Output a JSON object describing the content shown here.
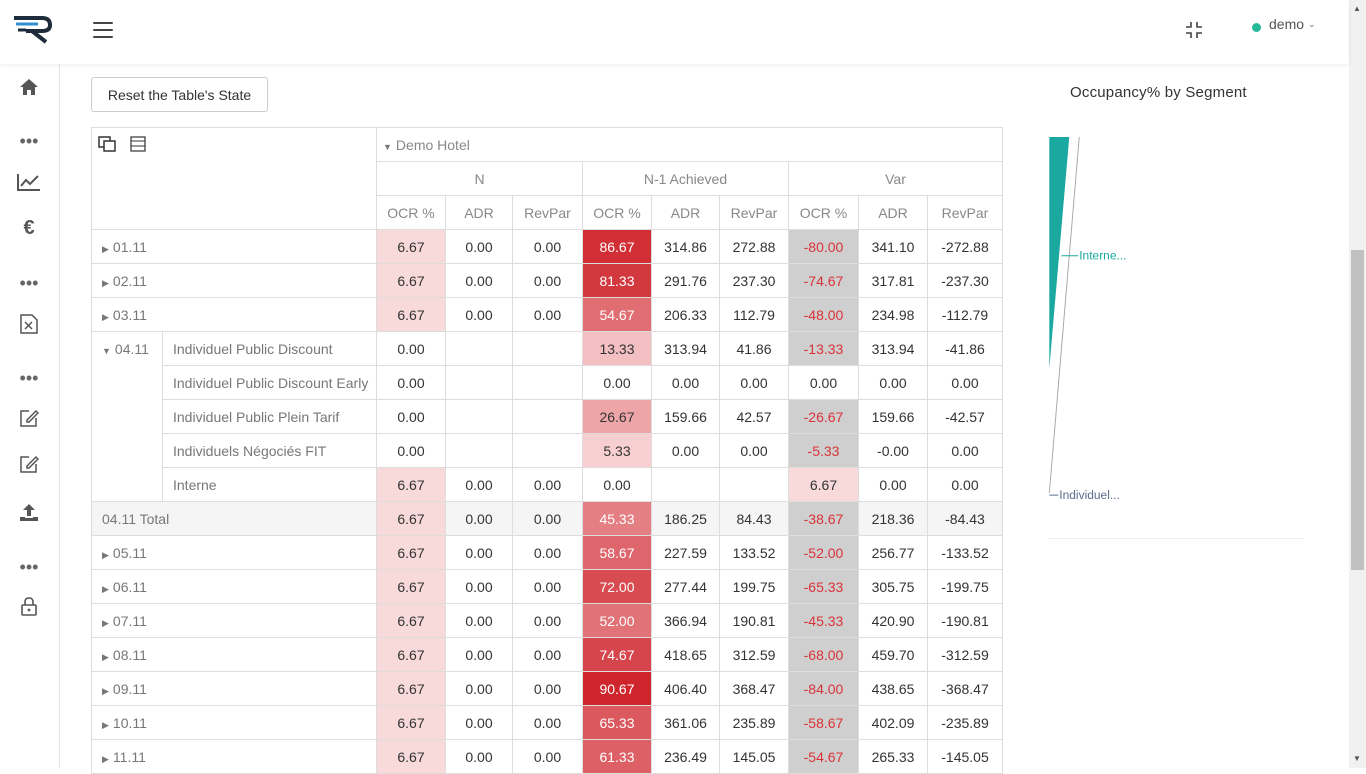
{
  "header": {
    "user": "demo"
  },
  "toolbar": {
    "reset_label": "Reset the Table's State"
  },
  "chart": {
    "title": "Occupancy% by Segment",
    "labels": [
      "Interne...",
      "Individuel..."
    ],
    "colors": {
      "interne": "#1aa8a1",
      "individuel": "#5a6b8c"
    }
  },
  "table": {
    "hotel": "Demo Hotel",
    "groups": [
      "N",
      "N-1 Achieved",
      "Var"
    ],
    "measures": [
      "OCR %",
      "ADR",
      "RevPar",
      "OCR %",
      "ADR",
      "RevPar",
      "OCR %",
      "ADR",
      "RevPar"
    ],
    "rows": [
      {
        "date": "01.11",
        "v": [
          "6.67",
          "0.00",
          "0.00",
          "86.67",
          "314.86",
          "272.88",
          "-80.00",
          "341.10",
          "-272.88"
        ]
      },
      {
        "date": "02.11",
        "v": [
          "6.67",
          "0.00",
          "0.00",
          "81.33",
          "291.76",
          "237.30",
          "-74.67",
          "317.81",
          "-237.30"
        ]
      },
      {
        "date": "03.11",
        "v": [
          "6.67",
          "0.00",
          "0.00",
          "54.67",
          "206.33",
          "112.79",
          "-48.00",
          "234.98",
          "-112.79"
        ]
      }
    ],
    "expanded": {
      "date": "04.11",
      "segments": [
        {
          "name": "Individuel Public Discount",
          "v": [
            "0.00",
            "",
            "",
            "13.33",
            "313.94",
            "41.86",
            "-13.33",
            "313.94",
            "-41.86"
          ]
        },
        {
          "name": "Individuel Public Discount Early",
          "v": [
            "0.00",
            "",
            "",
            "0.00",
            "0.00",
            "0.00",
            "0.00",
            "0.00",
            "0.00"
          ]
        },
        {
          "name": "Individuel Public Plein Tarif",
          "v": [
            "0.00",
            "",
            "",
            "26.67",
            "159.66",
            "42.57",
            "-26.67",
            "159.66",
            "-42.57"
          ]
        },
        {
          "name": "Individuels Négociés FIT",
          "v": [
            "0.00",
            "",
            "",
            "5.33",
            "0.00",
            "0.00",
            "-5.33",
            "-0.00",
            "0.00"
          ]
        },
        {
          "name": "Interne",
          "v": [
            "6.67",
            "0.00",
            "0.00",
            "0.00",
            "",
            "",
            "6.67",
            "0.00",
            "0.00"
          ]
        }
      ],
      "total_label": "04.11 Total",
      "total": [
        "6.67",
        "0.00",
        "0.00",
        "45.33",
        "186.25",
        "84.43",
        "-38.67",
        "218.36",
        "-84.43"
      ]
    },
    "rows_after": [
      {
        "date": "05.11",
        "v": [
          "6.67",
          "0.00",
          "0.00",
          "58.67",
          "227.59",
          "133.52",
          "-52.00",
          "256.77",
          "-133.52"
        ]
      },
      {
        "date": "06.11",
        "v": [
          "6.67",
          "0.00",
          "0.00",
          "72.00",
          "277.44",
          "199.75",
          "-65.33",
          "305.75",
          "-199.75"
        ]
      },
      {
        "date": "07.11",
        "v": [
          "6.67",
          "0.00",
          "0.00",
          "52.00",
          "366.94",
          "190.81",
          "-45.33",
          "420.90",
          "-190.81"
        ]
      },
      {
        "date": "08.11",
        "v": [
          "6.67",
          "0.00",
          "0.00",
          "74.67",
          "418.65",
          "312.59",
          "-68.00",
          "459.70",
          "-312.59"
        ]
      },
      {
        "date": "09.11",
        "v": [
          "6.67",
          "0.00",
          "0.00",
          "90.67",
          "406.40",
          "368.47",
          "-84.00",
          "438.65",
          "-368.47"
        ]
      },
      {
        "date": "10.11",
        "v": [
          "6.67",
          "0.00",
          "0.00",
          "65.33",
          "361.06",
          "235.89",
          "-58.67",
          "402.09",
          "-235.89"
        ]
      },
      {
        "date": "11.11",
        "v": [
          "6.67",
          "0.00",
          "0.00",
          "61.33",
          "236.49",
          "145.05",
          "-54.67",
          "265.33",
          "-145.05"
        ]
      }
    ]
  }
}
